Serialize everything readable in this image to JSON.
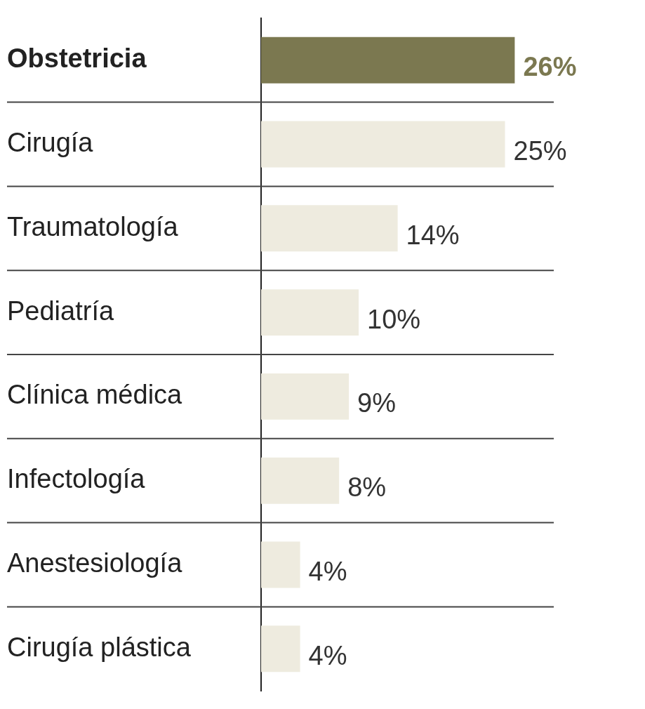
{
  "chart_data": {
    "type": "bar",
    "orientation": "horizontal",
    "categories": [
      "Obstetricia",
      "Cirugía",
      "Traumatología",
      "Pediatría",
      "Clínica médica",
      "Infectología",
      "Anestesiología",
      "Cirugía plástica"
    ],
    "values": [
      26,
      25,
      14,
      10,
      9,
      8,
      4,
      4
    ],
    "colors": [
      "#7b7850",
      "#eeebdf",
      "#eeebdf",
      "#eeebdf",
      "#eeebdf",
      "#eeebdf",
      "#eeebdf",
      "#eeebdf"
    ],
    "value_labels": [
      "26%",
      "25%",
      "14%",
      "10%",
      "9%",
      "8%",
      "4%",
      "4%"
    ],
    "tick_labels": "y",
    "grid": "y",
    "legend": false
  }
}
